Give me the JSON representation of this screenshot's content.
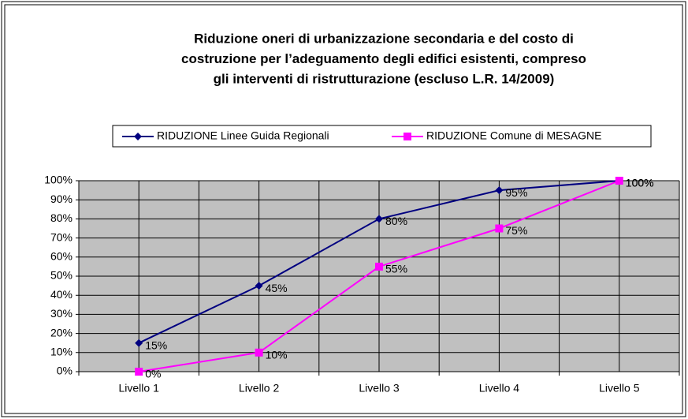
{
  "chart_data": {
    "type": "line",
    "title": "Riduzione oneri di urbanizzazione secondaria e del costo di costruzione per l’adeguamento degli edifici esistenti, compreso gli interventi di ristrutturazione (escluso L.R. 14/2009)",
    "title_lines": [
      "Riduzione oneri di urbanizzazione secondaria e del costo di",
      "costruzione per l’adeguamento degli edifici esistenti, compreso",
      "gli interventi di ristrutturazione (escluso L.R. 14/2009)"
    ],
    "categories": [
      "Livello 1",
      "Livello 2",
      "Livello 3",
      "Livello 4",
      "Livello 5"
    ],
    "series": [
      {
        "name": "RIDUZIONE  Linee Guida Regionali",
        "color": "#000080",
        "marker": "diamond",
        "values": [
          15,
          45,
          80,
          95,
          100
        ],
        "value_labels": [
          "15%",
          "45%",
          "80%",
          "95%",
          "100%"
        ]
      },
      {
        "name": "RIDUZIONE  Comune di MESAGNE",
        "color": "#ff00ff",
        "marker": "square",
        "values": [
          0,
          10,
          55,
          75,
          100
        ],
        "value_labels": [
          "0%",
          "10%",
          "55%",
          "75%",
          "100%"
        ]
      }
    ],
    "ylim": [
      0,
      100
    ],
    "yticks": [
      {
        "value": 0,
        "label": "0%"
      },
      {
        "value": 10,
        "label": "10%"
      },
      {
        "value": 20,
        "label": "20%"
      },
      {
        "value": 30,
        "label": "30%"
      },
      {
        "value": 40,
        "label": "40%"
      },
      {
        "value": 50,
        "label": "50%"
      },
      {
        "value": 60,
        "label": "60%"
      },
      {
        "value": 70,
        "label": "70%"
      },
      {
        "value": 80,
        "label": "80%"
      },
      {
        "value": 90,
        "label": "90%"
      },
      {
        "value": 100,
        "label": "100%"
      }
    ],
    "grid": true,
    "legend": "top"
  }
}
